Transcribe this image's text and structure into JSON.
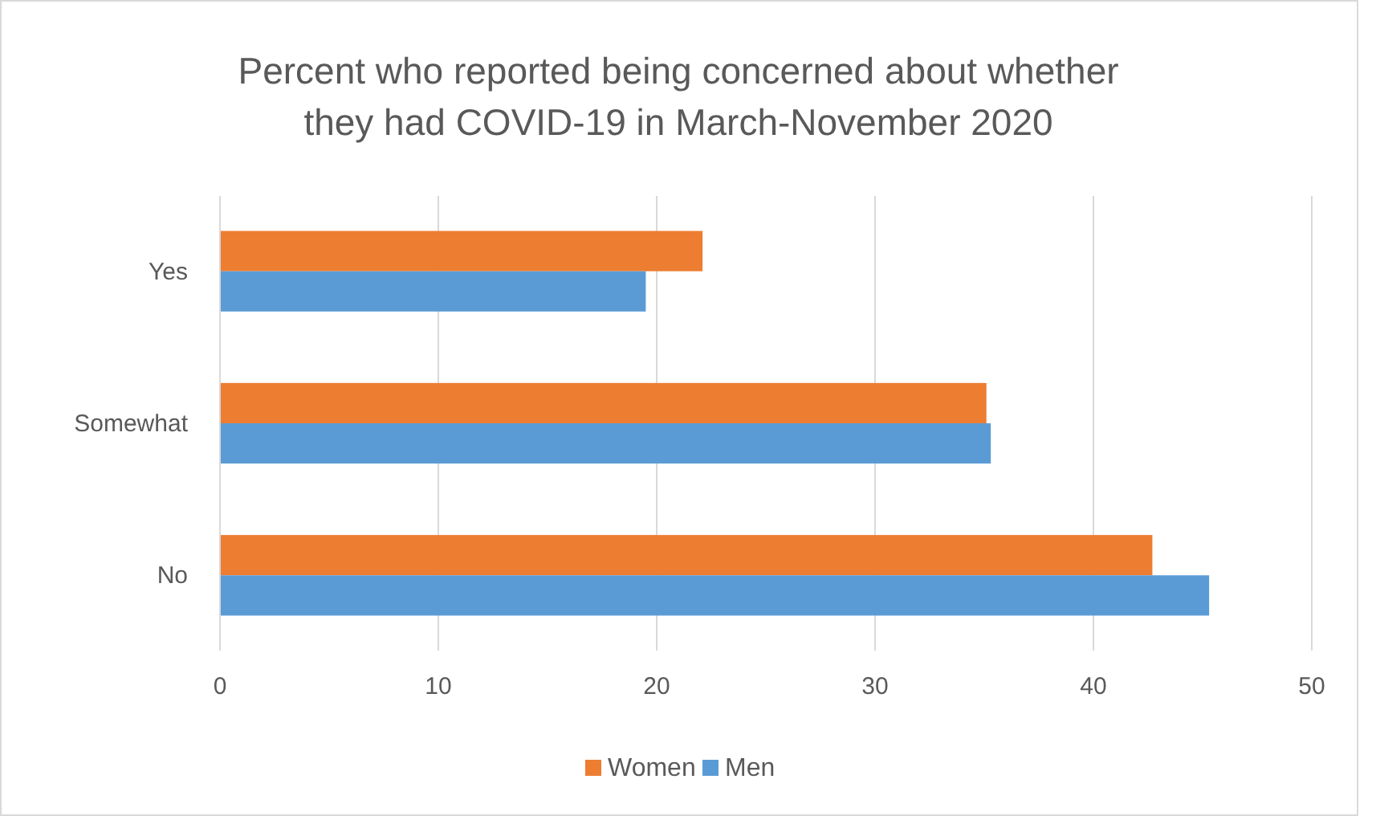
{
  "chart_data": {
    "type": "bar",
    "orientation": "horizontal",
    "title": "Percent who reported being concerned about whether they had COVID-19 in March-November 2020",
    "categories": [
      "Yes",
      "Somewhat",
      "No"
    ],
    "series": [
      {
        "name": "Women",
        "color": "#ed7d31",
        "values": [
          22.1,
          35.1,
          42.7
        ]
      },
      {
        "name": "Men",
        "color": "#5b9bd5",
        "values": [
          19.5,
          35.3,
          45.3
        ]
      }
    ],
    "xlim": [
      0,
      50
    ],
    "xticks": [
      0,
      10,
      20,
      30,
      40,
      50
    ],
    "grid": "x",
    "legend": "bottom"
  }
}
